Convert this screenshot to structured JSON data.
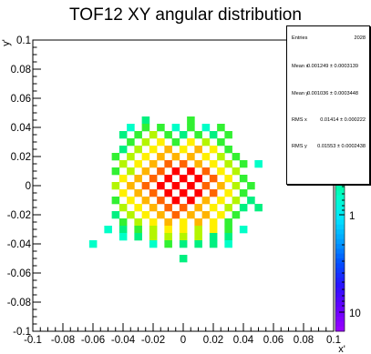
{
  "title": "TOF12 XY angular distribution",
  "stats": {
    "entries_label": "Entries",
    "entries_value": "2028",
    "mean_x_label": "Mean x",
    "mean_x_value": "0.001249 ± 0.0003139",
    "mean_y_label": "Mean y",
    "mean_y_value": "0.001036 ± 0.0003448",
    "rms_x_label": "RMS x",
    "rms_x_value": "0.01414 ± 0.000222",
    "rms_y_label": "RMS y",
    "rms_y_value": "0.01553 ± 0.0002438"
  },
  "chart_data": {
    "type": "heatmap",
    "title": "TOF12 XY angular distribution",
    "xlabel": "x'",
    "ylabel": "y'",
    "xlim": [
      -0.1,
      0.1
    ],
    "ylim": [
      -0.1,
      0.1
    ],
    "bin_width": 0.005,
    "x_ticks": [
      "-0.1",
      "-0.08",
      "-0.06",
      "-0.04",
      "-0.02",
      "0",
      "0.02",
      "0.04",
      "0.06",
      "0.08",
      "0.1"
    ],
    "y_ticks": [
      "-0.1",
      "-0.08",
      "-0.06",
      "-0.04",
      "-0.02",
      "0",
      "0.02",
      "0.04",
      "0.06",
      "0.08",
      "0.1"
    ],
    "z_scale": "log",
    "z_tick_labels": [
      "10",
      "1",
      "10"
    ],
    "colors": {
      "z_1": "#00ffc8",
      "z_2": "#00f080",
      "z_3": "#32f032",
      "z_4": "#b4f500",
      "z_5": "#fff000",
      "z_6": "#ffb400",
      "z_7": "#ff6400",
      "z_8": "#ff0000"
    },
    "bins": [
      {
        "x": -0.035,
        "y": 0.04,
        "z": 1
      },
      {
        "x": -0.025,
        "y": 0.045,
        "z": 2
      },
      {
        "x": -0.025,
        "y": 0.04,
        "z": 3
      },
      {
        "x": -0.015,
        "y": 0.04,
        "z": 3
      },
      {
        "x": -0.005,
        "y": 0.04,
        "z": 1
      },
      {
        "x": 0.005,
        "y": 0.045,
        "z": 3
      },
      {
        "x": 0.005,
        "y": 0.04,
        "z": 3
      },
      {
        "x": 0.015,
        "y": 0.04,
        "z": 1
      },
      {
        "x": 0.025,
        "y": 0.04,
        "z": 3
      },
      {
        "x": -0.04,
        "y": 0.035,
        "z": 2
      },
      {
        "x": -0.03,
        "y": 0.035,
        "z": 3
      },
      {
        "x": -0.02,
        "y": 0.035,
        "z": 4
      },
      {
        "x": -0.01,
        "y": 0.035,
        "z": 3
      },
      {
        "x": 0.0,
        "y": 0.035,
        "z": 2
      },
      {
        "x": 0.01,
        "y": 0.035,
        "z": 3
      },
      {
        "x": 0.02,
        "y": 0.035,
        "z": 2
      },
      {
        "x": 0.03,
        "y": 0.035,
        "z": 3
      },
      {
        "x": -0.035,
        "y": 0.03,
        "z": 3
      },
      {
        "x": -0.025,
        "y": 0.03,
        "z": 4
      },
      {
        "x": -0.015,
        "y": 0.03,
        "z": 5
      },
      {
        "x": -0.005,
        "y": 0.03,
        "z": 3
      },
      {
        "x": 0.005,
        "y": 0.03,
        "z": 5
      },
      {
        "x": 0.015,
        "y": 0.03,
        "z": 4
      },
      {
        "x": 0.025,
        "y": 0.03,
        "z": 3
      },
      {
        "x": -0.04,
        "y": 0.025,
        "z": 2
      },
      {
        "x": -0.03,
        "y": 0.025,
        "z": 4
      },
      {
        "x": -0.02,
        "y": 0.025,
        "z": 5
      },
      {
        "x": -0.01,
        "y": 0.025,
        "z": 6
      },
      {
        "x": 0.0,
        "y": 0.025,
        "z": 5
      },
      {
        "x": 0.01,
        "y": 0.025,
        "z": 6
      },
      {
        "x": 0.02,
        "y": 0.025,
        "z": 5
      },
      {
        "x": 0.03,
        "y": 0.025,
        "z": 3
      },
      {
        "x": -0.045,
        "y": 0.02,
        "z": 3
      },
      {
        "x": -0.035,
        "y": 0.02,
        "z": 4
      },
      {
        "x": -0.025,
        "y": 0.02,
        "z": 5
      },
      {
        "x": -0.015,
        "y": 0.02,
        "z": 6
      },
      {
        "x": -0.005,
        "y": 0.02,
        "z": 6
      },
      {
        "x": 0.005,
        "y": 0.02,
        "z": 6
      },
      {
        "x": 0.015,
        "y": 0.02,
        "z": 5
      },
      {
        "x": 0.025,
        "y": 0.02,
        "z": 4
      },
      {
        "x": 0.035,
        "y": 0.02,
        "z": 3
      },
      {
        "x": -0.04,
        "y": 0.015,
        "z": 4
      },
      {
        "x": -0.03,
        "y": 0.015,
        "z": 5
      },
      {
        "x": -0.02,
        "y": 0.015,
        "z": 6
      },
      {
        "x": -0.01,
        "y": 0.015,
        "z": 7
      },
      {
        "x": 0.0,
        "y": 0.015,
        "z": 7
      },
      {
        "x": 0.01,
        "y": 0.015,
        "z": 6
      },
      {
        "x": 0.02,
        "y": 0.015,
        "z": 5
      },
      {
        "x": 0.03,
        "y": 0.015,
        "z": 4
      },
      {
        "x": 0.04,
        "y": 0.015,
        "z": 3
      },
      {
        "x": 0.05,
        "y": 0.015,
        "z": 1
      },
      {
        "x": -0.045,
        "y": 0.01,
        "z": 3
      },
      {
        "x": -0.035,
        "y": 0.01,
        "z": 4
      },
      {
        "x": -0.025,
        "y": 0.01,
        "z": 6
      },
      {
        "x": -0.015,
        "y": 0.01,
        "z": 7
      },
      {
        "x": -0.005,
        "y": 0.01,
        "z": 8
      },
      {
        "x": 0.005,
        "y": 0.01,
        "z": 8
      },
      {
        "x": 0.015,
        "y": 0.01,
        "z": 7
      },
      {
        "x": 0.025,
        "y": 0.01,
        "z": 5
      },
      {
        "x": 0.035,
        "y": 0.01,
        "z": 4
      },
      {
        "x": -0.04,
        "y": 0.005,
        "z": 5
      },
      {
        "x": -0.03,
        "y": 0.005,
        "z": 6
      },
      {
        "x": -0.02,
        "y": 0.005,
        "z": 7
      },
      {
        "x": -0.01,
        "y": 0.005,
        "z": 8
      },
      {
        "x": 0.0,
        "y": 0.005,
        "z": 8
      },
      {
        "x": 0.01,
        "y": 0.005,
        "z": 8
      },
      {
        "x": 0.02,
        "y": 0.005,
        "z": 7
      },
      {
        "x": 0.03,
        "y": 0.005,
        "z": 5
      },
      {
        "x": 0.04,
        "y": 0.005,
        "z": 3
      },
      {
        "x": -0.045,
        "y": 0.0,
        "z": 4
      },
      {
        "x": -0.035,
        "y": 0.0,
        "z": 6
      },
      {
        "x": -0.025,
        "y": 0.0,
        "z": 7
      },
      {
        "x": -0.015,
        "y": 0.0,
        "z": 8
      },
      {
        "x": -0.005,
        "y": 0.0,
        "z": 8
      },
      {
        "x": 0.005,
        "y": 0.0,
        "z": 8
      },
      {
        "x": 0.015,
        "y": 0.0,
        "z": 7
      },
      {
        "x": 0.025,
        "y": 0.0,
        "z": 6
      },
      {
        "x": 0.035,
        "y": 0.0,
        "z": 4
      },
      {
        "x": 0.045,
        "y": 0.0,
        "z": 3
      },
      {
        "x": -0.04,
        "y": -0.005,
        "z": 5
      },
      {
        "x": -0.03,
        "y": -0.005,
        "z": 6
      },
      {
        "x": -0.02,
        "y": -0.005,
        "z": 7
      },
      {
        "x": -0.01,
        "y": -0.005,
        "z": 8
      },
      {
        "x": 0.0,
        "y": -0.005,
        "z": 8
      },
      {
        "x": 0.01,
        "y": -0.005,
        "z": 8
      },
      {
        "x": 0.02,
        "y": -0.005,
        "z": 7
      },
      {
        "x": 0.03,
        "y": -0.005,
        "z": 5
      },
      {
        "x": 0.04,
        "y": -0.005,
        "z": 3
      },
      {
        "x": -0.045,
        "y": -0.01,
        "z": 3
      },
      {
        "x": -0.035,
        "y": -0.01,
        "z": 5
      },
      {
        "x": -0.025,
        "y": -0.01,
        "z": 6
      },
      {
        "x": -0.015,
        "y": -0.01,
        "z": 7
      },
      {
        "x": -0.005,
        "y": -0.01,
        "z": 8
      },
      {
        "x": 0.005,
        "y": -0.01,
        "z": 8
      },
      {
        "x": 0.015,
        "y": -0.01,
        "z": 6
      },
      {
        "x": 0.025,
        "y": -0.01,
        "z": 5
      },
      {
        "x": 0.035,
        "y": -0.01,
        "z": 4
      },
      {
        "x": 0.045,
        "y": -0.01,
        "z": 2
      },
      {
        "x": -0.04,
        "y": -0.015,
        "z": 4
      },
      {
        "x": -0.03,
        "y": -0.015,
        "z": 5
      },
      {
        "x": -0.02,
        "y": -0.015,
        "z": 6
      },
      {
        "x": -0.01,
        "y": -0.015,
        "z": 7
      },
      {
        "x": 0.0,
        "y": -0.015,
        "z": 7
      },
      {
        "x": 0.01,
        "y": -0.015,
        "z": 6
      },
      {
        "x": 0.02,
        "y": -0.015,
        "z": 5
      },
      {
        "x": 0.03,
        "y": -0.015,
        "z": 4
      },
      {
        "x": 0.04,
        "y": -0.015,
        "z": 2
      },
      {
        "x": 0.05,
        "y": -0.015,
        "z": 2
      },
      {
        "x": -0.045,
        "y": -0.02,
        "z": 2
      },
      {
        "x": -0.035,
        "y": -0.02,
        "z": 4
      },
      {
        "x": -0.025,
        "y": -0.02,
        "z": 5
      },
      {
        "x": -0.015,
        "y": -0.02,
        "z": 6
      },
      {
        "x": -0.005,
        "y": -0.02,
        "z": 7
      },
      {
        "x": 0.005,
        "y": -0.02,
        "z": 6
      },
      {
        "x": 0.015,
        "y": -0.02,
        "z": 6
      },
      {
        "x": 0.025,
        "y": -0.02,
        "z": 5
      },
      {
        "x": 0.035,
        "y": -0.02,
        "z": 3
      },
      {
        "x": -0.04,
        "y": -0.025,
        "z": 3
      },
      {
        "x": -0.03,
        "y": -0.025,
        "z": 4
      },
      {
        "x": -0.02,
        "y": -0.025,
        "z": 5
      },
      {
        "x": -0.01,
        "y": -0.025,
        "z": 6
      },
      {
        "x": 0.0,
        "y": -0.025,
        "z": 5
      },
      {
        "x": 0.01,
        "y": -0.025,
        "z": 6
      },
      {
        "x": 0.02,
        "y": -0.025,
        "z": 5
      },
      {
        "x": 0.03,
        "y": -0.025,
        "z": 3
      },
      {
        "x": -0.05,
        "y": -0.03,
        "z": 1
      },
      {
        "x": -0.04,
        "y": -0.03,
        "z": 2
      },
      {
        "x": -0.03,
        "y": -0.03,
        "z": 3
      },
      {
        "x": -0.02,
        "y": -0.03,
        "z": 4
      },
      {
        "x": -0.01,
        "y": -0.03,
        "z": 5
      },
      {
        "x": 0.0,
        "y": -0.03,
        "z": 5
      },
      {
        "x": 0.01,
        "y": -0.03,
        "z": 4
      },
      {
        "x": 0.02,
        "y": -0.03,
        "z": 5
      },
      {
        "x": 0.03,
        "y": -0.03,
        "z": 3
      },
      {
        "x": 0.04,
        "y": -0.03,
        "z": 1
      },
      {
        "x": -0.04,
        "y": -0.035,
        "z": 1
      },
      {
        "x": -0.03,
        "y": -0.035,
        "z": 2
      },
      {
        "x": -0.02,
        "y": -0.035,
        "z": 4
      },
      {
        "x": -0.01,
        "y": -0.035,
        "z": 4
      },
      {
        "x": 0.0,
        "y": -0.035,
        "z": 4
      },
      {
        "x": 0.01,
        "y": -0.035,
        "z": 4
      },
      {
        "x": 0.02,
        "y": -0.035,
        "z": 2
      },
      {
        "x": 0.03,
        "y": -0.035,
        "z": 2
      },
      {
        "x": -0.06,
        "y": -0.04,
        "z": 1
      },
      {
        "x": -0.02,
        "y": -0.04,
        "z": 1
      },
      {
        "x": -0.01,
        "y": -0.04,
        "z": 3
      },
      {
        "x": 0.0,
        "y": -0.04,
        "z": 2
      },
      {
        "x": 0.01,
        "y": -0.04,
        "z": 2
      },
      {
        "x": 0.02,
        "y": -0.04,
        "z": 2
      },
      {
        "x": 0.03,
        "y": -0.04,
        "z": 1
      },
      {
        "x": 0.0,
        "y": -0.05,
        "z": 2
      }
    ]
  }
}
